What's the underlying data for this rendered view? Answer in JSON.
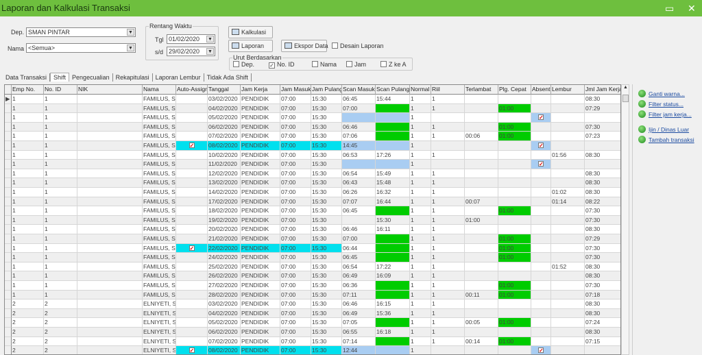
{
  "window": {
    "title": "Laporan dan Kalkulasi Transaksi",
    "maximize_icon": "maximize-icon",
    "close_icon": "close-icon"
  },
  "filters": {
    "dep_label": "Dep.",
    "dep_value": "SMAN PINTAR",
    "nama_label": "Nama",
    "nama_value": "<Semua>"
  },
  "range": {
    "title": "Rentang Waktu",
    "from_label": "Tgl",
    "from_value": "01/02/2020",
    "to_label": "s/d",
    "to_value": "29/02/2020"
  },
  "buttons": {
    "kalkulasi": "Kalkulasi",
    "laporan": "Laporan",
    "ekspor": "Ekspor Data",
    "desain": "Desain Laporan"
  },
  "sort": {
    "title": "Urut Berdasarkan",
    "options": [
      {
        "label": "Dep.",
        "checked": false
      },
      {
        "label": "No. ID",
        "checked": true
      },
      {
        "label": "Nama",
        "checked": false
      },
      {
        "label": "Jam",
        "checked": false
      },
      {
        "label": "Z ke A",
        "checked": false
      }
    ]
  },
  "tabs": [
    "Data Transaksi",
    "Shift",
    "Pengecualian",
    "Rekapitulasi",
    "Laporan Lembur",
    "Tidak Ada Shift"
  ],
  "active_tab": "Shift",
  "colors": {
    "title_bar": "#6ebf3e",
    "auto_assign": "#00e0ee",
    "missing_scan": "#a9cdf2",
    "early_leave": "#00cc00"
  },
  "table": {
    "columns": [
      "Emp No.",
      "No. ID",
      "NIK",
      "Nama",
      "Auto-Assign",
      "Tanggal",
      "Jam Kerja",
      "Jam Masuk",
      "Jam Pulang",
      "Scan Masuk",
      "Scan Pulang",
      "Normal",
      "Riil",
      "Terlambat",
      "Plg. Cepat",
      "Absent",
      "Lembur",
      "Jml Jam Kerja"
    ],
    "rows": [
      [
        "1",
        "1",
        "",
        "FAMILUS, S.",
        false,
        "03/02/2020",
        "PENDIDIK",
        "07:00",
        "15:30",
        "06:45",
        "15:44",
        "1",
        "1",
        "",
        "",
        false,
        "",
        "08:30"
      ],
      [
        "1",
        "1",
        "",
        "FAMILUS, S.",
        false,
        "04/02/2020",
        "PENDIDIK",
        "07:00",
        "15:30",
        "07:00",
        "",
        "1",
        "1",
        "",
        "01:00",
        false,
        "",
        "07:29"
      ],
      [
        "1",
        "1",
        "",
        "FAMILUS, S.",
        false,
        "05/02/2020",
        "PENDIDIK",
        "07:00",
        "15:30",
        "",
        "",
        "1",
        "",
        "",
        "",
        true,
        "",
        ""
      ],
      [
        "1",
        "1",
        "",
        "FAMILUS, S.",
        false,
        "06/02/2020",
        "PENDIDIK",
        "07:00",
        "15:30",
        "06:46",
        "",
        "1",
        "1",
        "",
        "01:00",
        false,
        "",
        "07:30"
      ],
      [
        "1",
        "1",
        "",
        "FAMILUS, S.",
        false,
        "07/02/2020",
        "PENDIDIK",
        "07:00",
        "15:30",
        "07:06",
        "",
        "1",
        "1",
        "00:06",
        "01:00",
        false,
        "",
        "07:23"
      ],
      [
        "1",
        "1",
        "",
        "FAMILUS, S.",
        true,
        "08/02/2020",
        "PENDIDIK",
        "07:00",
        "15:30",
        "14:45",
        "",
        "1",
        "",
        "",
        "",
        true,
        "",
        ""
      ],
      [
        "1",
        "1",
        "",
        "FAMILUS, S.",
        false,
        "10/02/2020",
        "PENDIDIK",
        "07:00",
        "15:30",
        "06:53",
        "17:26",
        "1",
        "1",
        "",
        "",
        false,
        "01:56",
        "08:30"
      ],
      [
        "1",
        "1",
        "",
        "FAMILUS, S.",
        false,
        "11/02/2020",
        "PENDIDIK",
        "07:00",
        "15:30",
        "",
        "",
        "1",
        "",
        "",
        "",
        true,
        "",
        ""
      ],
      [
        "1",
        "1",
        "",
        "FAMILUS, S.",
        false,
        "12/02/2020",
        "PENDIDIK",
        "07:00",
        "15:30",
        "06:54",
        "15:49",
        "1",
        "1",
        "",
        "",
        false,
        "",
        "08:30"
      ],
      [
        "1",
        "1",
        "",
        "FAMILUS, S.",
        false,
        "13/02/2020",
        "PENDIDIK",
        "07:00",
        "15:30",
        "06:43",
        "15:48",
        "1",
        "1",
        "",
        "",
        false,
        "",
        "08:30"
      ],
      [
        "1",
        "1",
        "",
        "FAMILUS, S.",
        false,
        "14/02/2020",
        "PENDIDIK",
        "07:00",
        "15:30",
        "06:26",
        "16:32",
        "1",
        "1",
        "",
        "",
        false,
        "01:02",
        "08:30"
      ],
      [
        "1",
        "1",
        "",
        "FAMILUS, S.",
        false,
        "17/02/2020",
        "PENDIDIK",
        "07:00",
        "15:30",
        "07:07",
        "16:44",
        "1",
        "1",
        "00:07",
        "",
        false,
        "01:14",
        "08:22"
      ],
      [
        "1",
        "1",
        "",
        "FAMILUS, S.",
        false,
        "18/02/2020",
        "PENDIDIK",
        "07:00",
        "15:30",
        "06:45",
        "",
        "1",
        "1",
        "",
        "01:00",
        false,
        "",
        "07:30"
      ],
      [
        "1",
        "1",
        "",
        "FAMILUS, S.",
        false,
        "19/02/2020",
        "PENDIDIK",
        "07:00",
        "15:30",
        "",
        "15:30",
        "1",
        "1",
        "01:00",
        "",
        false,
        "",
        "07:30"
      ],
      [
        "1",
        "1",
        "",
        "FAMILUS, S.",
        false,
        "20/02/2020",
        "PENDIDIK",
        "07:00",
        "15:30",
        "06:46",
        "16:11",
        "1",
        "1",
        "",
        "",
        false,
        "",
        "08:30"
      ],
      [
        "1",
        "1",
        "",
        "FAMILUS, S.",
        false,
        "21/02/2020",
        "PENDIDIK",
        "07:00",
        "15:30",
        "07:00",
        "",
        "1",
        "1",
        "",
        "01:00",
        false,
        "",
        "07:29"
      ],
      [
        "1",
        "1",
        "",
        "FAMILUS, S.",
        true,
        "22/02/2020",
        "PENDIDIK",
        "07:00",
        "15:30",
        "06:44",
        "",
        "1",
        "1",
        "",
        "01:00",
        false,
        "",
        "07:30"
      ],
      [
        "1",
        "1",
        "",
        "FAMILUS, S.",
        false,
        "24/02/2020",
        "PENDIDIK",
        "07:00",
        "15:30",
        "06:45",
        "",
        "1",
        "1",
        "",
        "01:00",
        false,
        "",
        "07:30"
      ],
      [
        "1",
        "1",
        "",
        "FAMILUS, S.",
        false,
        "25/02/2020",
        "PENDIDIK",
        "07:00",
        "15:30",
        "06:54",
        "17:22",
        "1",
        "1",
        "",
        "",
        false,
        "01:52",
        "08:30"
      ],
      [
        "1",
        "1",
        "",
        "FAMILUS, S.",
        false,
        "26/02/2020",
        "PENDIDIK",
        "07:00",
        "15:30",
        "06:49",
        "16:09",
        "1",
        "1",
        "",
        "",
        false,
        "",
        "08:30"
      ],
      [
        "1",
        "1",
        "",
        "FAMILUS, S.",
        false,
        "27/02/2020",
        "PENDIDIK",
        "07:00",
        "15:30",
        "06:36",
        "",
        "1",
        "1",
        "",
        "01:00",
        false,
        "",
        "07:30"
      ],
      [
        "1",
        "1",
        "",
        "FAMILUS, S.",
        false,
        "28/02/2020",
        "PENDIDIK",
        "07:00",
        "15:30",
        "07:11",
        "",
        "1",
        "1",
        "00:11",
        "01:00",
        false,
        "",
        "07:18"
      ],
      [
        "2",
        "2",
        "",
        "ELNIYETI, S.",
        false,
        "03/02/2020",
        "PENDIDIK",
        "07:00",
        "15:30",
        "06:46",
        "16:15",
        "1",
        "1",
        "",
        "",
        false,
        "",
        "08:30"
      ],
      [
        "2",
        "2",
        "",
        "ELNIYETI, S.",
        false,
        "04/02/2020",
        "PENDIDIK",
        "07:00",
        "15:30",
        "06:49",
        "15:36",
        "1",
        "1",
        "",
        "",
        false,
        "",
        "08:30"
      ],
      [
        "2",
        "2",
        "",
        "ELNIYETI, S.",
        false,
        "05/02/2020",
        "PENDIDIK",
        "07:00",
        "15:30",
        "07:05",
        "",
        "1",
        "1",
        "00:05",
        "01:00",
        false,
        "",
        "07:24"
      ],
      [
        "2",
        "2",
        "",
        "ELNIYETI, S.",
        false,
        "06/02/2020",
        "PENDIDIK",
        "07:00",
        "15:30",
        "06:55",
        "16:18",
        "1",
        "1",
        "",
        "",
        false,
        "",
        "08:30"
      ],
      [
        "2",
        "2",
        "",
        "ELNIYETI, S.",
        false,
        "07/02/2020",
        "PENDIDIK",
        "07:00",
        "15:30",
        "07:14",
        "",
        "1",
        "1",
        "00:14",
        "01:00",
        false,
        "",
        "07:15"
      ],
      [
        "2",
        "2",
        "",
        "ELNIYETI, S.",
        true,
        "08/02/2020",
        "PENDIDIK",
        "07:00",
        "15:30",
        "12:44",
        "",
        "1",
        "",
        "",
        "",
        true,
        "",
        ""
      ]
    ]
  },
  "side_links": [
    "Ganti warna...",
    "Filter status...",
    "Filter jam kerja...",
    "Ijin / Dinas Luar",
    "Tambah transaksi"
  ]
}
